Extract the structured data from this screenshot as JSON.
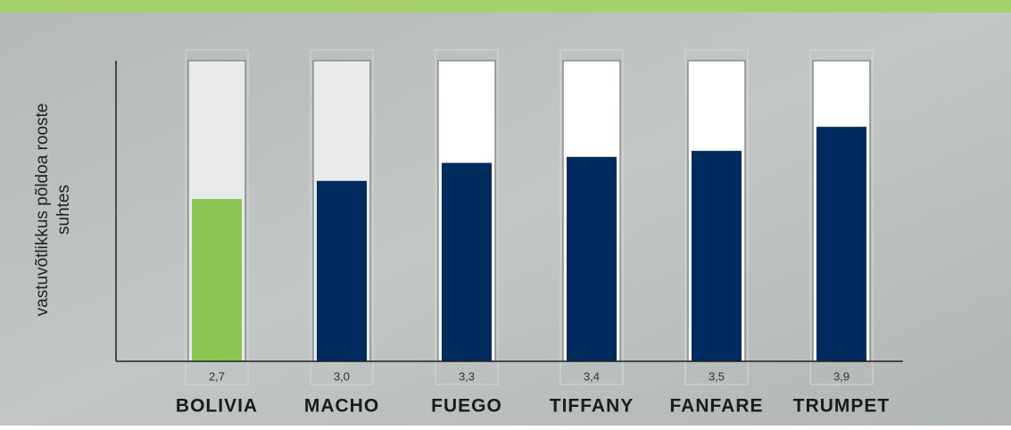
{
  "chart_data": {
    "type": "bar",
    "categories": [
      "BOLIVIA",
      "MACHO",
      "FUEGO",
      "TIFFANY",
      "FANFARE",
      "TRUMPET"
    ],
    "values": [
      2.7,
      3.0,
      3.3,
      3.4,
      3.5,
      3.9
    ],
    "value_labels": [
      "2,7",
      "3,0",
      "3,3",
      "3,4",
      "3,5",
      "3,9"
    ],
    "colors": [
      "#8bc653",
      "#002b5e",
      "#002b5e",
      "#002b5e",
      "#002b5e",
      "#002b5e"
    ],
    "ylabel": [
      "vastuvõtlikkus põldoa rooste",
      "suhtes"
    ],
    "ylim": [
      0,
      5
    ]
  }
}
